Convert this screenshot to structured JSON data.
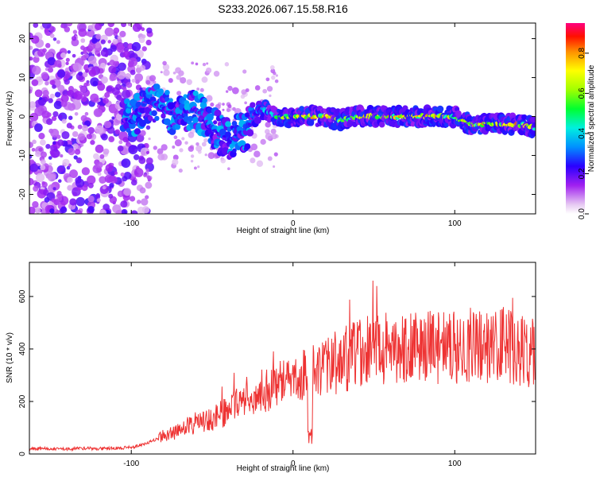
{
  "chart_data": [
    {
      "type": "heatmap",
      "title": "S233.2026.067.15.58.R16",
      "xlabel": "Height of straight line (km)",
      "ylabel": "Frequency (Hz)",
      "xlim": [
        -163,
        150
      ],
      "ylim": [
        -25,
        24
      ],
      "xticks": [
        -100,
        0,
        100
      ],
      "yticks": [
        20,
        10,
        0,
        -10,
        -20
      ],
      "colorbar": {
        "label": "Normalized spectral amplitude",
        "range": [
          0,
          0.95
        ],
        "ticks": [
          0.0,
          0.2,
          0.4,
          0.6,
          0.8
        ]
      },
      "description_points": {
        "x": [
          -100,
          -90,
          -80,
          -70,
          -60,
          -50,
          -40,
          -30,
          -20,
          -10,
          0,
          10,
          20,
          30,
          40,
          50,
          60,
          70,
          80,
          90,
          100,
          110,
          120,
          130,
          140,
          150
        ],
        "peak_frequency": [
          -1,
          4,
          2,
          0,
          2,
          -3,
          -6,
          -4,
          2,
          0,
          0,
          0,
          0,
          -1,
          0,
          0,
          0,
          0,
          0,
          0,
          0,
          -2,
          -2,
          -2,
          -2,
          -3
        ],
        "peak_amplitude": [
          0.25,
          0.28,
          0.3,
          0.3,
          0.28,
          0.3,
          0.3,
          0.32,
          0.35,
          0.6,
          0.85,
          0.8,
          0.85,
          0.8,
          0.75,
          0.8,
          0.85,
          0.85,
          0.85,
          0.8,
          0.75,
          0.8,
          0.85,
          0.85,
          0.85,
          0.7
        ]
      }
    },
    {
      "type": "line",
      "title": "",
      "xlabel": "Height of straight line (km)",
      "ylabel": "SNR (10 * v/v)",
      "xlim": [
        -163,
        150
      ],
      "ylim": [
        0,
        730
      ],
      "xticks": [
        -100,
        0,
        100
      ],
      "yticks": [
        0,
        200,
        400,
        600
      ],
      "color": "#ee3333",
      "series": [
        {
          "name": "SNR",
          "x": [
            -163,
            -150,
            -140,
            -130,
            -120,
            -110,
            -100,
            -90,
            -80,
            -70,
            -60,
            -50,
            -40,
            -30,
            -20,
            -10,
            -5,
            0,
            5,
            10,
            15,
            20,
            30,
            40,
            50,
            60,
            70,
            80,
            90,
            100,
            110,
            120,
            130,
            140,
            150
          ],
          "values": [
            20,
            20,
            18,
            22,
            20,
            22,
            25,
            40,
            70,
            90,
            120,
            130,
            170,
            220,
            240,
            250,
            280,
            260,
            300,
            320,
            300,
            330,
            360,
            380,
            400,
            410,
            400,
            410,
            400,
            410,
            420,
            410,
            420,
            400,
            380
          ]
        }
      ]
    }
  ]
}
